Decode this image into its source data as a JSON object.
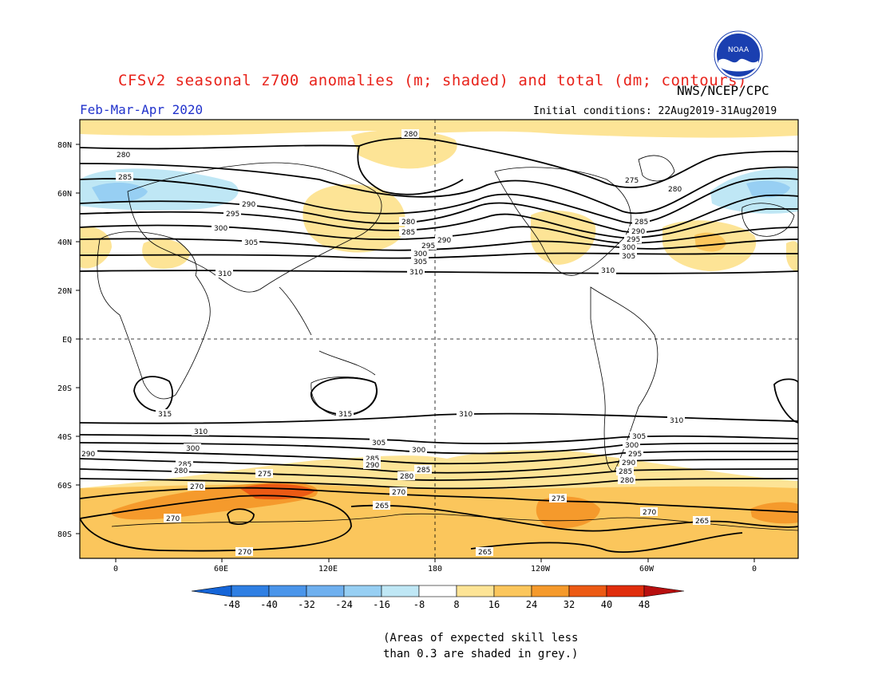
{
  "title": "CFSv2 seasonal z700 anomalies (m; shaded) and total (dm; contours)",
  "org": "NWS/NCEP/CPC",
  "period": "Feb-Mar-Apr 2020",
  "initial_conditions": "Initial conditions: 22Aug2019-31Aug2019",
  "logo_text": "NOAA",
  "lat_labels": [
    "80N",
    "60N",
    "40N",
    "20N",
    "EQ",
    "20S",
    "40S",
    "60S",
    "80S"
  ],
  "lon_labels": [
    "0",
    "60E",
    "120E",
    "180",
    "120W",
    "60W",
    "0"
  ],
  "colorbar": {
    "values": [
      "-48",
      "-40",
      "-32",
      "-24",
      "-16",
      "-8",
      "8",
      "16",
      "24",
      "32",
      "40",
      "48"
    ],
    "colors": [
      "#1565d8",
      "#2f7fe3",
      "#4a95ea",
      "#6fb0ef",
      "#97cff3",
      "#bfe7f5",
      "#ffffff",
      "#fde496",
      "#fbc65c",
      "#f59a2c",
      "#ec5a14",
      "#e02d0c",
      "#b80f0f"
    ]
  },
  "contour_labels": [
    "280",
    "285",
    "290",
    "295",
    "300",
    "305",
    "310",
    "315",
    "265",
    "270",
    "275"
  ],
  "note_line1": "(Areas of expected skill less",
  "note_line2": "than 0.3 are shaded in grey.)"
}
